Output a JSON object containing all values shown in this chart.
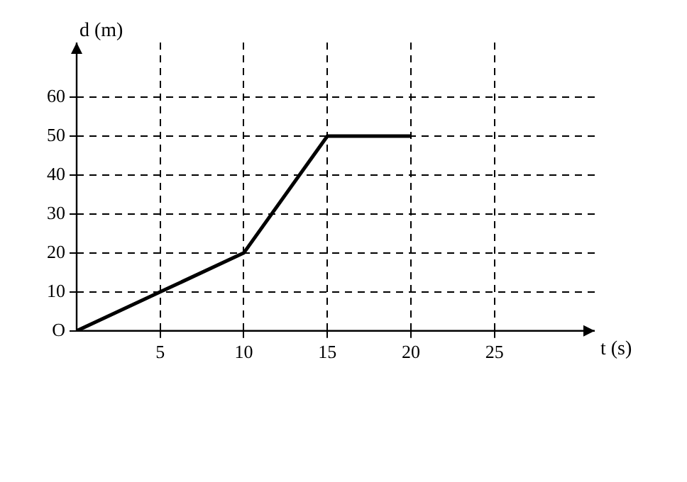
{
  "chart_data": {
    "type": "line",
    "xlabel": "t (s)",
    "ylabel": "d (m)",
    "series": [
      {
        "color": "#000000",
        "x": [
          0,
          5,
          10,
          15,
          20
        ],
        "values": [
          0,
          10,
          20,
          50,
          50
        ]
      }
    ],
    "xlim": [
      0,
      31
    ],
    "xticks": [
      5,
      10,
      15,
      20,
      25
    ],
    "ylim": [
      0,
      74
    ],
    "yticks": [
      {
        "value": 0,
        "label": "O"
      },
      10,
      20,
      30,
      40,
      50,
      60
    ],
    "grid": true,
    "marker": "none",
    "line_style": "solid",
    "legend": false
  }
}
